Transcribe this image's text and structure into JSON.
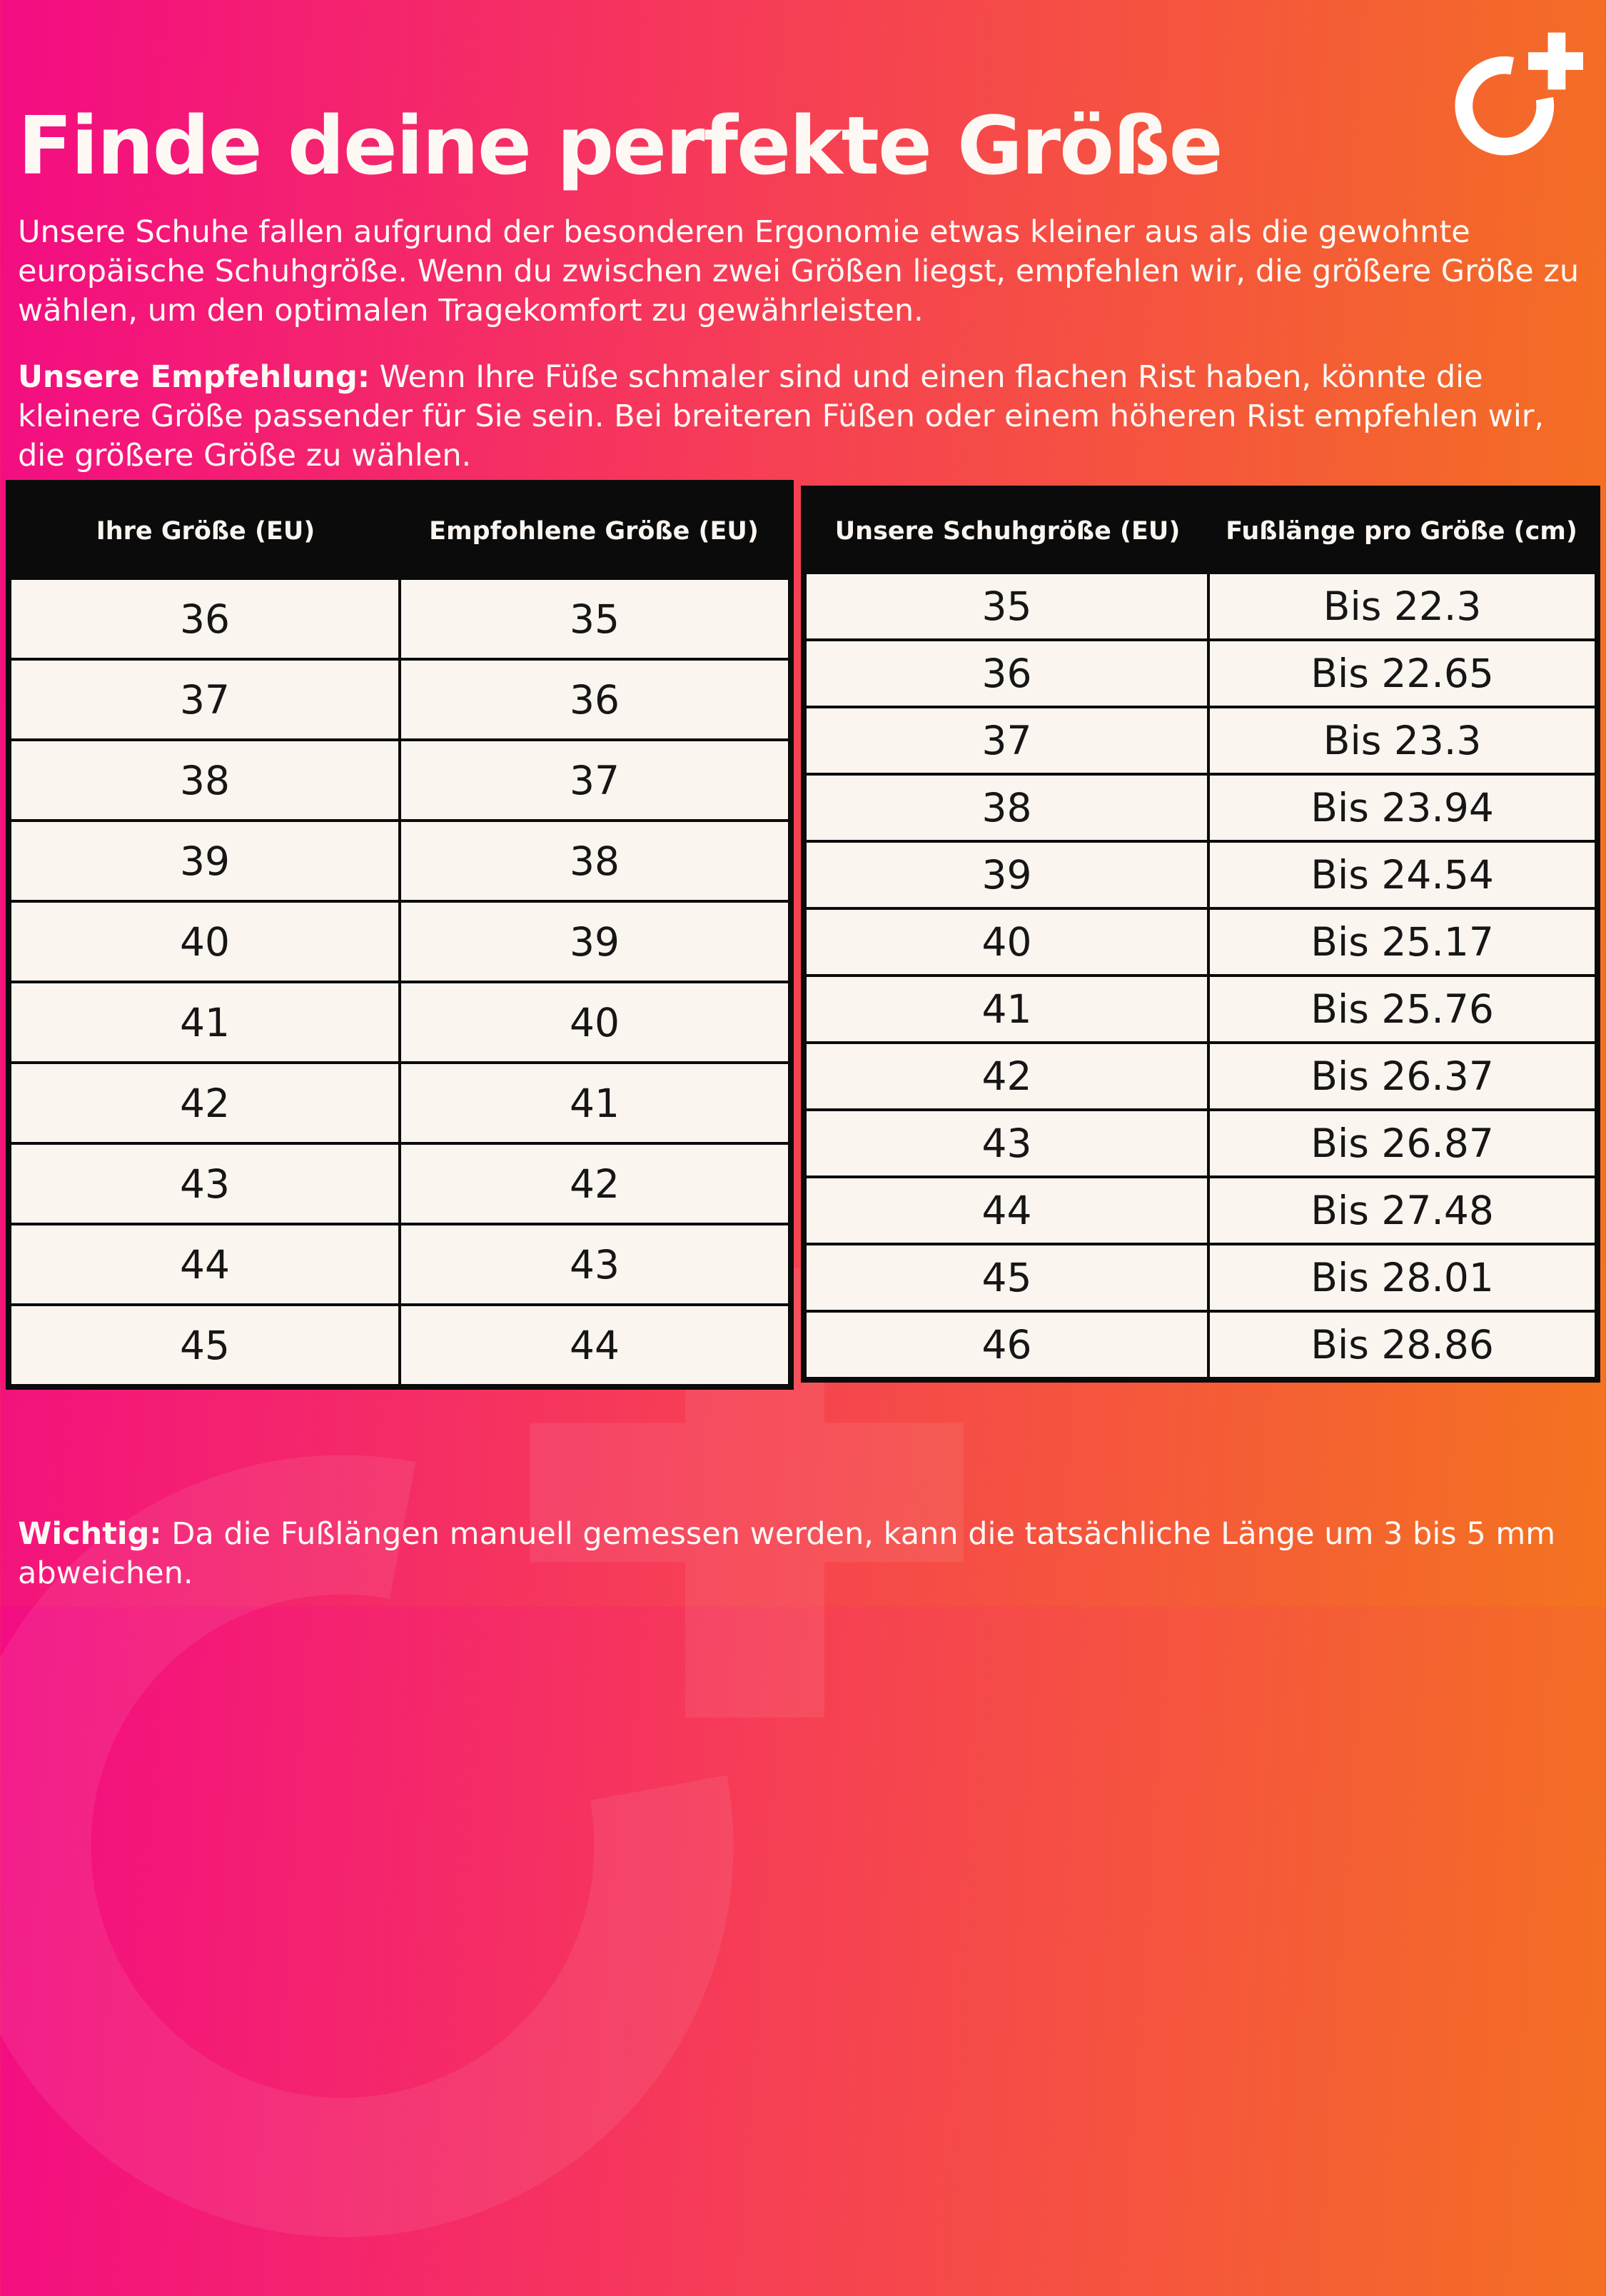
{
  "page": {
    "title": "Finde deine perfekte Größe",
    "intro": "Unsere Schuhe fallen aufgrund der besonderen Ergonomie etwas kleiner aus als die gewohnte europäische Schuhgröße. Wenn du zwischen zwei Größen liegst, empfehlen wir, die größere Größe zu wählen, um den optimalen Tragekomfort zu gewährleisten.",
    "recommendation_label": "Unsere Empfehlung:",
    "recommendation_text": " Wenn Ihre Füße schmaler sind und einen flachen Rist haben, könnte die kleinere Größe passender für Sie sein. Bei breiteren Füßen oder einem höheren Rist empfehlen wir, die größere Größe zu wählen.",
    "note_label": "Wichtig:",
    "note_text": " Da die Fußlängen manuell gemessen werden, kann die tatsächliche Länge um 3 bis 5 mm abweichen."
  },
  "logo": {
    "name": "circle-plus-brand-logo",
    "color": "#ffffff"
  },
  "colors": {
    "gradient_left": "#f30c83",
    "gradient_mid": "#f63e55",
    "gradient_right": "#f4731f",
    "table_header_bg": "#0b0b0b",
    "table_header_text": "#fbf5f0",
    "cell_bg": "#fbf5f0",
    "cell_text": "#161616",
    "body_text": "#fdf8f4"
  },
  "size_table": {
    "headers": [
      "Ihre Größe (EU)",
      "Empfohlene Größe (EU)"
    ],
    "rows": [
      [
        "36",
        "35"
      ],
      [
        "37",
        "36"
      ],
      [
        "38",
        "37"
      ],
      [
        "39",
        "38"
      ],
      [
        "40",
        "39"
      ],
      [
        "41",
        "40"
      ],
      [
        "42",
        "41"
      ],
      [
        "43",
        "42"
      ],
      [
        "44",
        "43"
      ],
      [
        "45",
        "44"
      ]
    ]
  },
  "foot_length_table": {
    "headers": [
      "Unsere Schuhgröße (EU)",
      "Fußlänge pro Größe (cm)"
    ],
    "rows": [
      [
        "35",
        "Bis 22.3"
      ],
      [
        "36",
        "Bis 22.65"
      ],
      [
        "37",
        "Bis 23.3"
      ],
      [
        "38",
        "Bis 23.94"
      ],
      [
        "39",
        "Bis 24.54"
      ],
      [
        "40",
        "Bis 25.17"
      ],
      [
        "41",
        "Bis 25.76"
      ],
      [
        "42",
        "Bis 26.37"
      ],
      [
        "43",
        "Bis 26.87"
      ],
      [
        "44",
        "Bis 27.48"
      ],
      [
        "45",
        "Bis 28.01"
      ],
      [
        "46",
        "Bis 28.86"
      ]
    ]
  }
}
